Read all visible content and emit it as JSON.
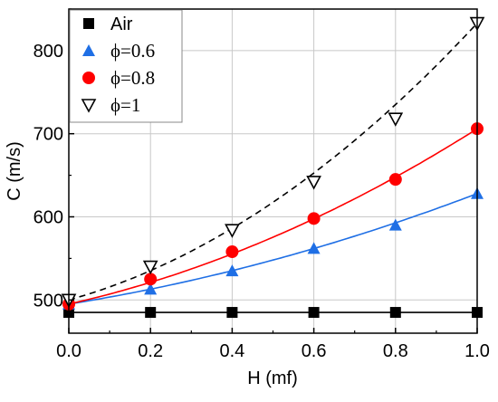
{
  "chart_data": {
    "type": "line",
    "title": "",
    "xlabel": "H (mf)",
    "ylabel": "C (m/s)",
    "xlim": [
      0.0,
      1.0
    ],
    "ylim": [
      460,
      850
    ],
    "xticks": [
      0.0,
      0.2,
      0.4,
      0.6,
      0.8,
      1.0
    ],
    "xtick_labels": [
      "0.0",
      "0.2",
      "0.4",
      "0.6",
      "0.8",
      "1.0"
    ],
    "yticks": [
      500,
      600,
      700,
      800
    ],
    "ytick_labels": [
      "500",
      "600",
      "700",
      "800"
    ],
    "grid": true,
    "legend_position": "top-left",
    "series": [
      {
        "name": "Air",
        "marker": "square",
        "color": "#000000",
        "line_style": "solid",
        "x": [
          0.0,
          0.2,
          0.4,
          0.6,
          0.8,
          1.0
        ],
        "y": [
          485,
          485,
          485,
          485,
          485,
          485
        ],
        "fit": [
          485,
          0,
          0
        ]
      },
      {
        "name": "ϕ=0.6",
        "marker": "triangle-up",
        "color": "#1f6fe5",
        "line_style": "solid",
        "x": [
          0.0,
          0.2,
          0.4,
          0.6,
          0.8,
          1.0
        ],
        "y": [
          495,
          513,
          535,
          562,
          590,
          628
        ],
        "fit": [
          495,
          79,
          54
        ]
      },
      {
        "name": "ϕ=0.8",
        "marker": "circle",
        "color": "#ff0000",
        "line_style": "solid",
        "x": [
          0.0,
          0.2,
          0.4,
          0.6,
          0.8,
          1.0
        ],
        "y": [
          495,
          525,
          558,
          598,
          645,
          706
        ],
        "fit": [
          495,
          111,
          100
        ]
      },
      {
        "name": "ϕ=1",
        "marker": "triangle-down-open",
        "color": "#000000",
        "line_style": "dashed",
        "x": [
          0.0,
          0.2,
          0.4,
          0.6,
          0.8,
          1.0
        ],
        "y": [
          500,
          540,
          584,
          642,
          718,
          833
        ],
        "fit": [
          500,
          137,
          196
        ]
      }
    ]
  }
}
